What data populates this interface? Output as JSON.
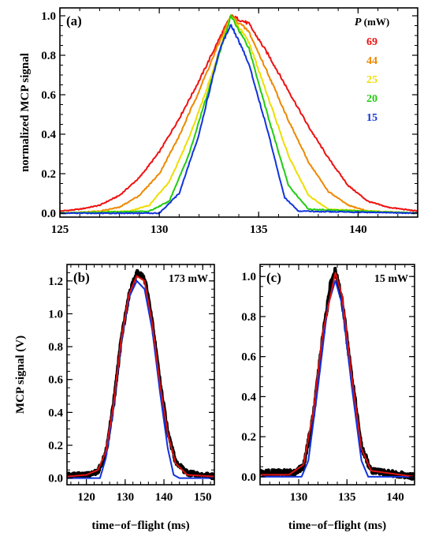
{
  "chart_data": [
    {
      "type": "line",
      "panel_label": "(a)",
      "ylabel": "normalized MCP signal",
      "xlabel": "",
      "xlim": [
        125,
        143
      ],
      "ylim": [
        -0.02,
        1.04
      ],
      "xticks": [
        125,
        130,
        135,
        140
      ],
      "yticks": [
        0.0,
        0.2,
        0.4,
        0.6,
        0.8,
        1.0
      ],
      "x_tick_labels": [
        "125",
        "130",
        "135",
        "140"
      ],
      "y_tick_labels": [
        "0.0",
        "0.2",
        "0.4",
        "0.6",
        "0.8",
        "1.0"
      ],
      "legend": {
        "title_var": "P",
        "title_unit": "(mW)",
        "placement": "top-right"
      },
      "series": [
        {
          "name": "69",
          "color": "#ee1111",
          "peak_x": 133.6,
          "peak_y": 1.0,
          "points": [
            [
              125,
              0.01
            ],
            [
              126,
              0.02
            ],
            [
              127,
              0.04
            ],
            [
              128,
              0.09
            ],
            [
              129,
              0.18
            ],
            [
              130,
              0.31
            ],
            [
              131,
              0.48
            ],
            [
              132,
              0.67
            ],
            [
              133,
              0.88
            ],
            [
              133.6,
              1.0
            ],
            [
              134.5,
              0.96
            ],
            [
              135.5,
              0.8
            ],
            [
              136.5,
              0.62
            ],
            [
              137.5,
              0.44
            ],
            [
              138.5,
              0.28
            ],
            [
              139.5,
              0.14
            ],
            [
              140.5,
              0.06
            ],
            [
              141.5,
              0.03
            ],
            [
              143,
              0.01
            ]
          ]
        },
        {
          "name": "44",
          "color": "#ee8800",
          "peak_x": 133.6,
          "peak_y": 1.0,
          "points": [
            [
              125,
              0.0
            ],
            [
              127,
              0.01
            ],
            [
              128,
              0.03
            ],
            [
              129,
              0.09
            ],
            [
              130,
              0.2
            ],
            [
              131,
              0.39
            ],
            [
              132,
              0.62
            ],
            [
              133,
              0.86
            ],
            [
              133.6,
              1.0
            ],
            [
              134.5,
              0.92
            ],
            [
              135.5,
              0.7
            ],
            [
              136.5,
              0.47
            ],
            [
              137.5,
              0.26
            ],
            [
              138.5,
              0.11
            ],
            [
              139.5,
              0.04
            ],
            [
              140.5,
              0.01
            ],
            [
              143,
              0.0
            ]
          ]
        },
        {
          "name": "25",
          "color": "#eedd00",
          "peak_x": 133.6,
          "peak_y": 1.0,
          "points": [
            [
              125,
              0.0
            ],
            [
              128.5,
              0.01
            ],
            [
              129.5,
              0.04
            ],
            [
              130.5,
              0.16
            ],
            [
              131.5,
              0.38
            ],
            [
              132.5,
              0.66
            ],
            [
              133.6,
              1.0
            ],
            [
              134.5,
              0.87
            ],
            [
              135.5,
              0.58
            ],
            [
              136.5,
              0.29
            ],
            [
              137.5,
              0.09
            ],
            [
              138.5,
              0.02
            ],
            [
              143,
              0.0
            ]
          ]
        },
        {
          "name": "20",
          "color": "#22cc11",
          "peak_x": 133.6,
          "peak_y": 1.0,
          "points": [
            [
              125,
              0.0
            ],
            [
              129.5,
              0.01
            ],
            [
              130.5,
              0.06
            ],
            [
              131.5,
              0.3
            ],
            [
              132.5,
              0.63
            ],
            [
              133.6,
              1.0
            ],
            [
              134.5,
              0.84
            ],
            [
              135.5,
              0.48
            ],
            [
              136.5,
              0.14
            ],
            [
              137.5,
              0.02
            ],
            [
              143,
              0.0
            ]
          ]
        },
        {
          "name": "15",
          "color": "#1133dd",
          "peak_x": 133.6,
          "peak_y": 0.96,
          "points": [
            [
              125,
              0.0
            ],
            [
              130,
              0.0
            ],
            [
              131,
              0.1
            ],
            [
              132,
              0.4
            ],
            [
              133,
              0.82
            ],
            [
              133.6,
              0.96
            ],
            [
              134.5,
              0.76
            ],
            [
              135.5,
              0.4
            ],
            [
              136.3,
              0.08
            ],
            [
              137,
              0.01
            ],
            [
              143,
              0.0
            ]
          ]
        }
      ]
    },
    {
      "type": "line",
      "panel_label": "(b)",
      "annotation": "173 mW",
      "ylabel": "MCP signal (V)",
      "xlabel": "time−of−flight (ms)",
      "xlim": [
        115,
        153
      ],
      "ylim": [
        -0.04,
        1.3
      ],
      "xticks": [
        120,
        130,
        140,
        150
      ],
      "yticks": [
        0.0,
        0.2,
        0.4,
        0.6,
        0.8,
        1.0,
        1.2
      ],
      "x_tick_labels": [
        "120",
        "130",
        "140",
        "150"
      ],
      "y_tick_labels": [
        "0.0",
        "0.2",
        "0.4",
        "0.6",
        "0.8",
        "1.0",
        "1.2"
      ],
      "series": [
        {
          "role": "measured",
          "color": "#000000",
          "points": [
            [
              115,
              0.02
            ],
            [
              120,
              0.02
            ],
            [
              123,
              0.04
            ],
            [
              125,
              0.15
            ],
            [
              127,
              0.45
            ],
            [
              129,
              0.85
            ],
            [
              131,
              1.12
            ],
            [
              133,
              1.25
            ],
            [
              135,
              1.22
            ],
            [
              137,
              0.95
            ],
            [
              139,
              0.58
            ],
            [
              141,
              0.28
            ],
            [
              143,
              0.1
            ],
            [
              146,
              0.03
            ],
            [
              153,
              0.01
            ]
          ]
        },
        {
          "role": "fit",
          "color": "#1133dd",
          "points": [
            [
              115,
              0.0
            ],
            [
              123.5,
              0.0
            ],
            [
              125,
              0.12
            ],
            [
              127,
              0.43
            ],
            [
              129,
              0.83
            ],
            [
              131,
              1.1
            ],
            [
              133,
              1.2
            ],
            [
              135,
              1.15
            ],
            [
              137,
              0.9
            ],
            [
              139,
              0.52
            ],
            [
              141,
              0.18
            ],
            [
              142.5,
              0.02
            ],
            [
              144,
              0.0
            ],
            [
              153,
              0.0
            ]
          ]
        },
        {
          "role": "fit",
          "color": "#dd1111",
          "points": [
            [
              115,
              0.01
            ],
            [
              120,
              0.02
            ],
            [
              123,
              0.05
            ],
            [
              125,
              0.16
            ],
            [
              127,
              0.45
            ],
            [
              129,
              0.85
            ],
            [
              131,
              1.12
            ],
            [
              133,
              1.23
            ],
            [
              135,
              1.2
            ],
            [
              137,
              0.94
            ],
            [
              139,
              0.57
            ],
            [
              141,
              0.27
            ],
            [
              143,
              0.09
            ],
            [
              146,
              0.02
            ],
            [
              153,
              0.01
            ]
          ]
        }
      ]
    },
    {
      "type": "line",
      "panel_label": "(c)",
      "annotation": "15 mW",
      "ylabel": "",
      "xlabel": "time−of−flight (ms)",
      "xlim": [
        126,
        142
      ],
      "ylim": [
        -0.04,
        1.06
      ],
      "xticks": [
        130,
        135,
        140
      ],
      "yticks": [
        0.0,
        0.2,
        0.4,
        0.6,
        0.8,
        1.0
      ],
      "x_tick_labels": [
        "130",
        "135",
        "140"
      ],
      "y_tick_labels": [
        "0.0",
        "0.2",
        "0.4",
        "0.6",
        "0.8",
        "1.0"
      ],
      "series": [
        {
          "role": "measured",
          "color": "#000000",
          "points": [
            [
              126,
              0.02
            ],
            [
              129.5,
              0.02
            ],
            [
              130.5,
              0.05
            ],
            [
              131.5,
              0.3
            ],
            [
              132.5,
              0.7
            ],
            [
              133.3,
              0.96
            ],
            [
              133.8,
              1.03
            ],
            [
              134.5,
              0.88
            ],
            [
              135.5,
              0.5
            ],
            [
              136.5,
              0.15
            ],
            [
              137.5,
              0.03
            ],
            [
              142,
              0.0
            ]
          ]
        },
        {
          "role": "fit",
          "color": "#1133dd",
          "points": [
            [
              126,
              0.0
            ],
            [
              130.3,
              0.0
            ],
            [
              131,
              0.08
            ],
            [
              132,
              0.45
            ],
            [
              133,
              0.85
            ],
            [
              133.8,
              0.98
            ],
            [
              134.5,
              0.86
            ],
            [
              135.5,
              0.45
            ],
            [
              136.5,
              0.08
            ],
            [
              137.2,
              0.0
            ],
            [
              142,
              0.0
            ]
          ]
        },
        {
          "role": "fit",
          "color": "#dd1111",
          "points": [
            [
              126,
              0.01
            ],
            [
              129,
              0.01
            ],
            [
              130.5,
              0.06
            ],
            [
              131.5,
              0.32
            ],
            [
              132.5,
              0.72
            ],
            [
              133.8,
              1.02
            ],
            [
              134.5,
              0.9
            ],
            [
              135.5,
              0.5
            ],
            [
              136.5,
              0.14
            ],
            [
              137.5,
              0.03
            ],
            [
              142,
              0.0
            ]
          ]
        }
      ]
    }
  ]
}
